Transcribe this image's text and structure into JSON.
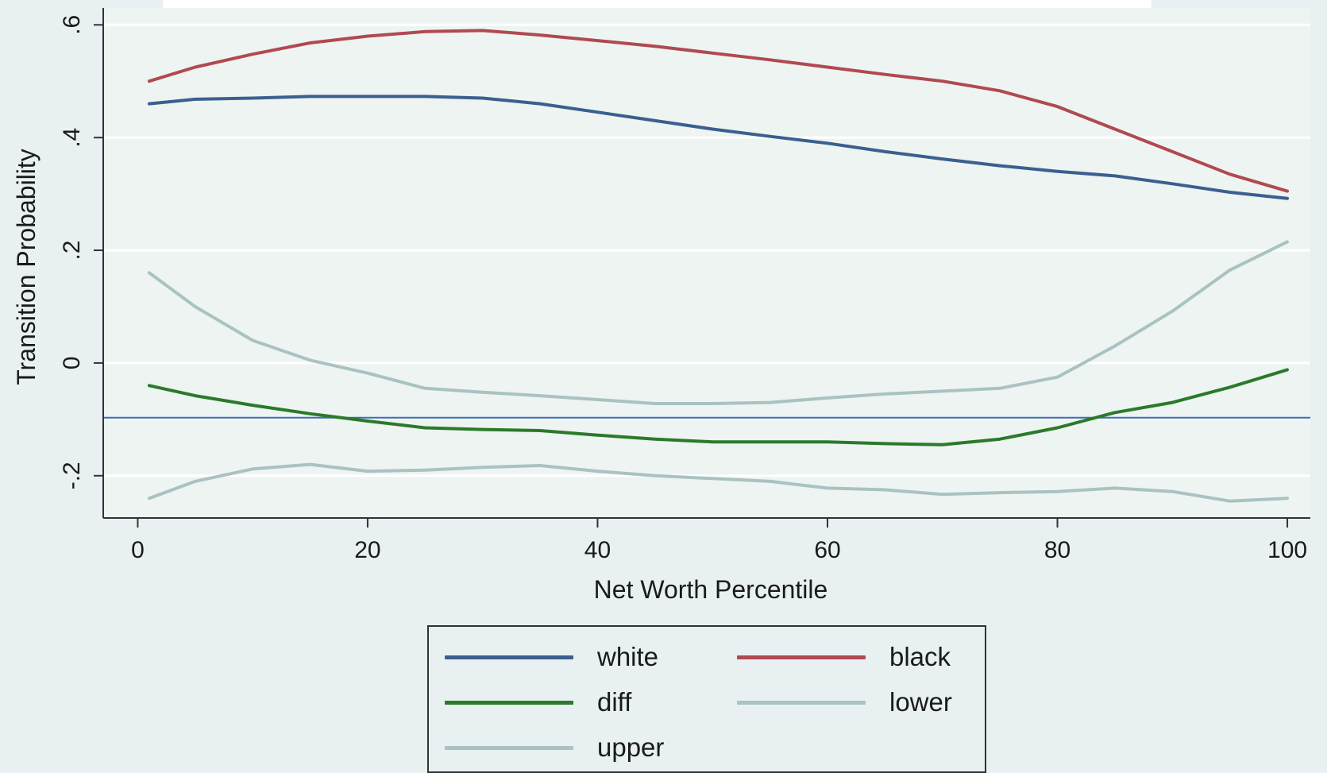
{
  "chart_data": {
    "type": "line",
    "xlabel": "Net Worth Percentile",
    "ylabel": "Transition Probability",
    "xlim": [
      -3,
      102
    ],
    "ylim": [
      -0.275,
      0.63
    ],
    "xticks": [
      0,
      20,
      40,
      60,
      80,
      100
    ],
    "xtick_labels": [
      "0",
      "20",
      "40",
      "60",
      "80",
      "100"
    ],
    "yticks": [
      -0.2,
      0,
      0.2,
      0.4,
      0.6
    ],
    "ytick_labels": [
      "-.2",
      "0",
      ".2",
      ".4",
      ".6"
    ],
    "grid": true,
    "reference_line": {
      "y": -0.097,
      "color": "#3a6fb8"
    },
    "x": [
      1,
      5,
      10,
      15,
      20,
      25,
      30,
      35,
      40,
      45,
      50,
      55,
      60,
      65,
      70,
      75,
      80,
      85,
      90,
      95,
      100
    ],
    "series": [
      {
        "name": "white",
        "color": "#3b5f8f",
        "values": [
          0.46,
          0.468,
          0.47,
          0.473,
          0.473,
          0.473,
          0.47,
          0.46,
          0.445,
          0.43,
          0.415,
          0.402,
          0.39,
          0.375,
          0.362,
          0.35,
          0.34,
          0.332,
          0.318,
          0.303,
          0.292
        ]
      },
      {
        "name": "black",
        "color": "#b04a50",
        "values": [
          0.5,
          0.525,
          0.548,
          0.568,
          0.58,
          0.588,
          0.59,
          0.582,
          0.572,
          0.562,
          0.55,
          0.538,
          0.525,
          0.512,
          0.5,
          0.483,
          0.455,
          0.415,
          0.375,
          0.335,
          0.305
        ]
      },
      {
        "name": "diff",
        "color": "#2a7a2a",
        "values": [
          -0.04,
          -0.058,
          -0.075,
          -0.09,
          -0.103,
          -0.115,
          -0.118,
          -0.12,
          -0.128,
          -0.135,
          -0.14,
          -0.14,
          -0.14,
          -0.143,
          -0.145,
          -0.135,
          -0.115,
          -0.088,
          -0.07,
          -0.043,
          -0.012
        ]
      },
      {
        "name": "lower",
        "color": "#a9c2c2",
        "values": [
          -0.24,
          -0.21,
          -0.188,
          -0.18,
          -0.192,
          -0.19,
          -0.185,
          -0.182,
          -0.192,
          -0.2,
          -0.205,
          -0.21,
          -0.222,
          -0.225,
          -0.233,
          -0.23,
          -0.228,
          -0.222,
          -0.228,
          -0.245,
          -0.24
        ]
      },
      {
        "name": "upper",
        "color": "#a9c2c2",
        "values": [
          0.16,
          0.1,
          0.04,
          0.005,
          -0.018,
          -0.045,
          -0.052,
          -0.058,
          -0.065,
          -0.072,
          -0.072,
          -0.07,
          -0.062,
          -0.055,
          -0.05,
          -0.045,
          -0.025,
          0.03,
          0.092,
          0.165,
          0.215
        ]
      }
    ],
    "legend": {
      "placement": "bottom",
      "items": [
        {
          "label": "white",
          "color": "#3b5f8f"
        },
        {
          "label": "black",
          "color": "#b04a50"
        },
        {
          "label": "diff",
          "color": "#2a7a2a"
        },
        {
          "label": "lower",
          "color": "#a9c2c2"
        },
        {
          "label": "upper",
          "color": "#a9c2c2"
        }
      ]
    },
    "plot_background": "#eef4f2"
  }
}
